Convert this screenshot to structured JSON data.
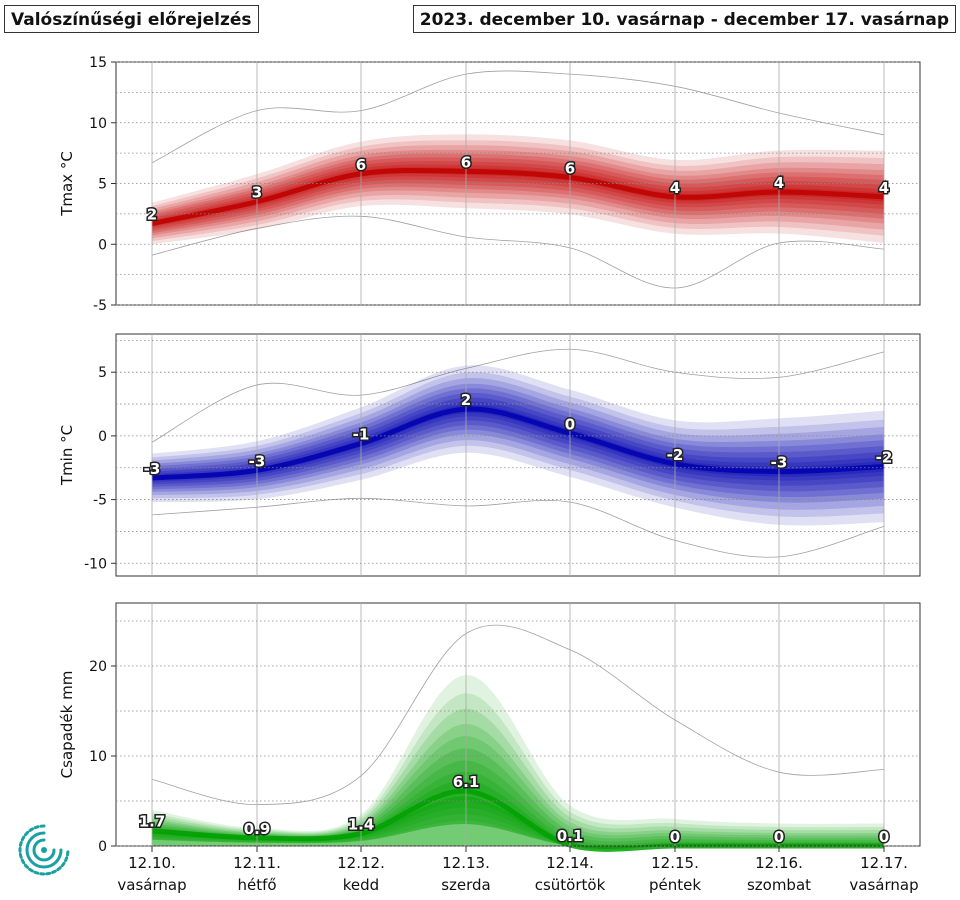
{
  "header": {
    "left_title": "Valószínűségi előrejelzés",
    "right_title": "2023. december 10. vasárnap - december 17. vasárnap"
  },
  "colors": {
    "tmax": "#c00000",
    "tmin": "#0000b0",
    "precip": "#00a000",
    "envelope": "#a0a0a0",
    "grid": "#aaaaaa"
  },
  "x_axis": {
    "dates": [
      "12.10.",
      "12.11.",
      "12.12.",
      "12.13.",
      "12.14.",
      "12.15.",
      "12.16.",
      "12.17."
    ],
    "days": [
      "vasárnap",
      "hétfő",
      "kedd",
      "szerda",
      "csütörtök",
      "péntek",
      "szombat",
      "vasárnap"
    ]
  },
  "chart_data": [
    {
      "type": "line",
      "id": "tmax",
      "ylabel": "Tmax °C",
      "ylim": [
        -5,
        15
      ],
      "yticks": [
        -5,
        0,
        5,
        10,
        15
      ],
      "grid": true,
      "median": [
        1.7,
        3.5,
        5.8,
        6.0,
        5.5,
        3.9,
        4.3,
        3.9
      ],
      "spread": [
        0.9,
        1.2,
        1.4,
        1.6,
        1.6,
        1.6,
        1.8,
        2.0
      ],
      "envelope_max": [
        6.7,
        11.0,
        11.0,
        14.0,
        14.0,
        13.0,
        10.8,
        9.0
      ],
      "envelope_min": [
        -0.9,
        1.3,
        2.3,
        0.6,
        -0.3,
        -3.6,
        0.1,
        -0.4
      ],
      "labels": [
        "2",
        "3",
        "6",
        "6",
        "6",
        "4",
        "4",
        "4"
      ]
    },
    {
      "type": "line",
      "id": "tmin",
      "ylabel": "Tmin °C",
      "ylim": [
        -11,
        8
      ],
      "yticks": [
        -10,
        -5,
        0,
        5
      ],
      "grid": true,
      "median": [
        -3.3,
        -2.7,
        -0.6,
        2.1,
        0.2,
        -2.2,
        -2.8,
        -2.4
      ],
      "spread": [
        1.0,
        1.2,
        1.5,
        1.8,
        1.8,
        1.8,
        2.2,
        2.3
      ],
      "envelope_max": [
        -0.5,
        4.0,
        3.2,
        5.3,
        6.8,
        5.0,
        4.6,
        6.6
      ],
      "envelope_min": [
        -6.2,
        -5.6,
        -4.9,
        -5.5,
        -5.2,
        -8.2,
        -9.5,
        -7.1
      ],
      "labels": [
        "-3",
        "-3",
        "-1",
        "2",
        "0",
        "-2",
        "-3",
        "-2"
      ]
    },
    {
      "type": "area",
      "id": "precip",
      "ylabel": "Csapadék mm",
      "ylim": [
        0,
        27
      ],
      "yticks": [
        0,
        10,
        20
      ],
      "grid": true,
      "median": [
        1.7,
        0.9,
        1.4,
        6.1,
        0.1,
        0,
        0,
        0
      ],
      "upper": [
        4.0,
        2.0,
        3.5,
        19.0,
        4.5,
        3.0,
        2.5,
        2.5
      ],
      "envelope_max": [
        7.4,
        4.6,
        7.8,
        23.6,
        21.8,
        14.0,
        8.2,
        8.5
      ],
      "labels": [
        "1.7",
        "0.9",
        "1.4",
        "6.1",
        "0.1",
        "0",
        "0",
        "0"
      ]
    }
  ]
}
